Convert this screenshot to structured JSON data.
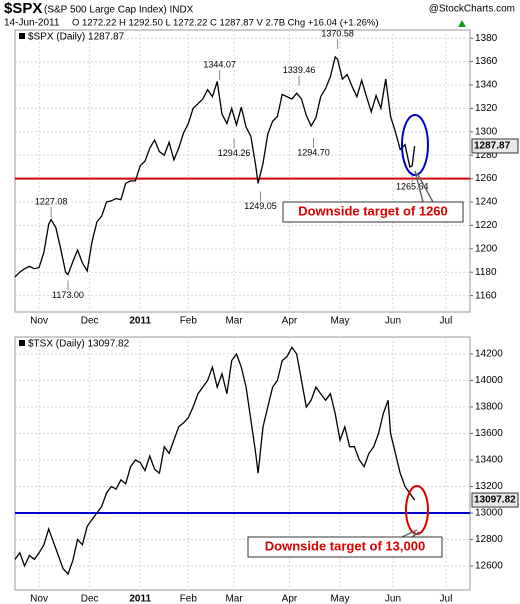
{
  "chart_data": [
    {
      "type": "line",
      "header": {
        "symbol": "$SPX",
        "name": "(S&P 500 Large Cap Index) INDX",
        "source": "@StockCharts.com",
        "date": "14-Jun-2011",
        "quote": "O 1272.22  H 1292.50  L 1272.22  C 1287.87  V 2.7B  Chg +16.04 (+1.26%)"
      },
      "x": [
        -10,
        -8,
        -6,
        -4,
        -2,
        0,
        2,
        4,
        5,
        7,
        9,
        11,
        12,
        14,
        16,
        18,
        20,
        22,
        24,
        26,
        28,
        30,
        32,
        34,
        36,
        38,
        40,
        42,
        44,
        46,
        48,
        50,
        52,
        54,
        56,
        58,
        60,
        62,
        64,
        66,
        68,
        70,
        72,
        74,
        76,
        78,
        80,
        82,
        84,
        86,
        88,
        90,
        91,
        93,
        95,
        97,
        99,
        101,
        103,
        105,
        107,
        109,
        111,
        113,
        115,
        117,
        119,
        121,
        123,
        124,
        126,
        128,
        130,
        132,
        134,
        136,
        138,
        140,
        142,
        144,
        146,
        148,
        150,
        152,
        154,
        155,
        156
      ],
      "series": [
        {
          "name": "$SPX (Daily) 1287.87",
          "color": "#000000",
          "values": [
            1176,
            1180,
            1183,
            1185,
            1183,
            1184,
            1197,
            1221,
            1225,
            1218,
            1200,
            1180,
            1178,
            1189,
            1199,
            1188,
            1181,
            1206,
            1223,
            1228,
            1240,
            1241,
            1243,
            1242,
            1256,
            1258,
            1258,
            1271,
            1275,
            1286,
            1293,
            1283,
            1280,
            1291,
            1276,
            1286,
            1299,
            1307,
            1320,
            1324,
            1328,
            1336,
            1330,
            1343,
            1315,
            1307,
            1320,
            1306,
            1321,
            1304,
            1296,
            1271,
            1256,
            1273,
            1298,
            1309,
            1313,
            1332,
            1330,
            1328,
            1333,
            1328,
            1314,
            1305,
            1312,
            1330,
            1337,
            1347,
            1364,
            1362,
            1345,
            1349,
            1339,
            1330,
            1344,
            1330,
            1317,
            1331,
            1320,
            1345,
            1313,
            1300,
            1285,
            1289,
            1270,
            1271,
            1287.87
          ]
        }
      ],
      "xlim": [
        -10,
        179
      ],
      "xticks": [
        {
          "value": 0,
          "label": "Nov"
        },
        {
          "value": 21,
          "label": "Dec"
        },
        {
          "value": 42,
          "label": "2011"
        },
        {
          "value": 62,
          "label": "Feb"
        },
        {
          "value": 81,
          "label": "Mar"
        },
        {
          "value": 104,
          "label": "Apr"
        },
        {
          "value": 125,
          "label": "May"
        },
        {
          "value": 147,
          "label": "Jun"
        },
        {
          "value": 169,
          "label": "Jul"
        }
      ],
      "ylim": [
        1146,
        1387
      ],
      "yticks": [
        1160,
        1180,
        1200,
        1220,
        1240,
        1260,
        1280,
        1300,
        1320,
        1340,
        1360,
        1380
      ],
      "grid": true,
      "annotations": [
        {
          "value": 1227.08,
          "x": 5
        },
        {
          "value": 1173,
          "label": "1173.00",
          "x": 12
        },
        {
          "value": 1344.07,
          "x": 75
        },
        {
          "value": 1294.26,
          "x": 81
        },
        {
          "value": 1249.05,
          "x": 92
        },
        {
          "value": 1339.46,
          "x": 108
        },
        {
          "value": 1294.7,
          "label": "1294.70",
          "x": 114
        },
        {
          "value": 1370.58,
          "x": 124
        },
        {
          "value": 1265.64,
          "x": 155
        }
      ],
      "hline": {
        "value": 1260,
        "color": "#dd0000"
      },
      "target_text": "Downside target of 1260"
    },
    {
      "type": "line",
      "x": [
        -10,
        -8,
        -6,
        -4,
        -2,
        0,
        2,
        4,
        6,
        8,
        10,
        12,
        14,
        16,
        18,
        20,
        22,
        24,
        26,
        28,
        30,
        32,
        34,
        36,
        38,
        40,
        42,
        44,
        46,
        48,
        50,
        52,
        54,
        56,
        58,
        60,
        62,
        64,
        66,
        68,
        70,
        72,
        74,
        76,
        78,
        80,
        82,
        84,
        86,
        88,
        90,
        91,
        93,
        95,
        97,
        99,
        101,
        103,
        105,
        107,
        109,
        111,
        113,
        115,
        117,
        119,
        121,
        123,
        125,
        127,
        129,
        131,
        133,
        135,
        137,
        139,
        141,
        143,
        145,
        146,
        148,
        150,
        152,
        154,
        156
      ],
      "series": [
        {
          "name": "$TSX (Daily) 13097.82",
          "color": "#000000",
          "values": [
            12650,
            12700,
            12600,
            12680,
            12650,
            12700,
            12760,
            12880,
            12780,
            12680,
            12580,
            12540,
            12640,
            12800,
            12760,
            12900,
            12950,
            13000,
            13050,
            13150,
            13200,
            13180,
            13250,
            13220,
            13350,
            13400,
            13380,
            13320,
            13430,
            13330,
            13300,
            13500,
            13450,
            13550,
            13650,
            13680,
            13720,
            13800,
            13900,
            13950,
            14000,
            14100,
            13950,
            14050,
            13900,
            14150,
            14200,
            14100,
            13950,
            13700,
            13450,
            13300,
            13650,
            13800,
            13950,
            14000,
            14150,
            14180,
            14250,
            14200,
            14000,
            13800,
            13850,
            13950,
            13900,
            13850,
            13900,
            13750,
            13550,
            13650,
            13500,
            13500,
            13400,
            13350,
            13450,
            13500,
            13600,
            13750,
            13850,
            13600,
            13450,
            13300,
            13200,
            13150,
            13097.82
          ]
        }
      ],
      "xlim": [
        -10,
        179
      ],
      "xticks": [
        {
          "value": 0,
          "label": "Nov"
        },
        {
          "value": 21,
          "label": "Dec"
        },
        {
          "value": 42,
          "label": "2011"
        },
        {
          "value": 62,
          "label": "Feb"
        },
        {
          "value": 81,
          "label": "Mar"
        },
        {
          "value": 104,
          "label": "Apr"
        },
        {
          "value": 125,
          "label": "May"
        },
        {
          "value": 147,
          "label": "Jun"
        },
        {
          "value": 169,
          "label": "Jul"
        }
      ],
      "ylim": [
        12419,
        14328
      ],
      "yticks": [
        12600,
        12800,
        13000,
        13200,
        13400,
        13600,
        13800,
        14000,
        14200
      ],
      "grid": true,
      "hline": {
        "value": 13000,
        "color": "#0000cc"
      },
      "target_text": "Downside target of 13,000"
    }
  ]
}
